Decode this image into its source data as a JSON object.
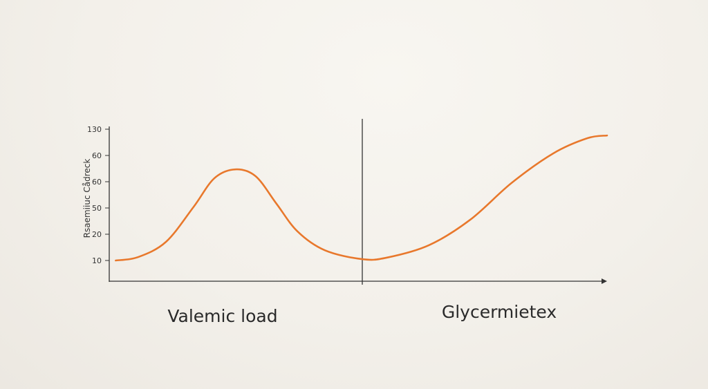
{
  "chart_data": {
    "type": "line",
    "title": "",
    "ylabel": "Rsaemiiuc Cådreck",
    "y_tick_labels": [
      "10",
      "20",
      "50",
      "60",
      "60",
      "130"
    ],
    "panel_labels": [
      "Valemic load",
      "Glycermietex"
    ],
    "grid": false,
    "colors": {
      "line": "#e8782c",
      "axis": "#333333"
    },
    "series": [
      {
        "x": [
          1.3,
          5.8,
          11.4,
          16.9,
          21.1,
          25.3,
          29.4,
          33.6,
          37.8,
          43.3,
          50.8,
          55.8,
          64.2,
          72.5,
          80.8,
          89.2,
          96.1,
          100
        ],
        "values": [
          0,
          0.13,
          0.71,
          2.03,
          3.13,
          3.47,
          3.21,
          2.16,
          1.11,
          0.39,
          0.05,
          0.11,
          0.58,
          1.55,
          2.95,
          4.08,
          4.66,
          4.76
        ]
      }
    ]
  }
}
